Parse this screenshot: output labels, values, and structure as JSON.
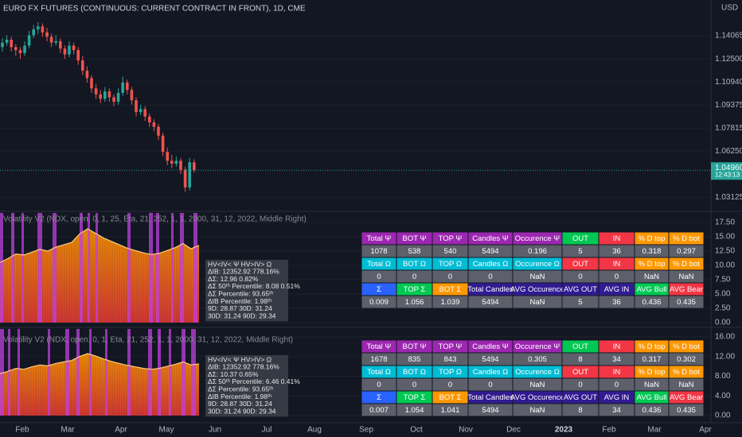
{
  "header": {
    "title": "EURO FX FUTURES (CONTINUOUS: CURRENT CONTRACT IN FRONT), 1D, CME",
    "currency": "USD"
  },
  "price_axis": {
    "ylim": [
      1.0239,
      1.1649
    ],
    "yticks": [
      {
        "value": 1.14065,
        "label": "1.14065"
      },
      {
        "value": 1.125,
        "label": "1.12500"
      },
      {
        "value": 1.1094,
        "label": "1.10940"
      },
      {
        "value": 1.09375,
        "label": "1.09375"
      },
      {
        "value": 1.07815,
        "label": "1.07815"
      },
      {
        "value": 1.0625,
        "label": "1.06250"
      },
      {
        "value": 1.03125,
        "label": "1.03125"
      }
    ],
    "last_price": {
      "value": 1.0496,
      "label": "1.04960"
    },
    "countdown": "12:43:13"
  },
  "candles": [
    [
      1.133,
      1.139,
      1.13,
      1.136
    ],
    [
      1.136,
      1.141,
      1.134,
      1.138
    ],
    [
      1.138,
      1.14,
      1.13,
      1.133
    ],
    [
      1.133,
      1.135,
      1.127,
      1.131
    ],
    [
      1.131,
      1.133,
      1.125,
      1.129
    ],
    [
      1.129,
      1.137,
      1.127,
      1.134
    ],
    [
      1.134,
      1.144,
      1.132,
      1.141
    ],
    [
      1.141,
      1.148,
      1.139,
      1.145
    ],
    [
      1.145,
      1.15,
      1.142,
      1.147
    ],
    [
      1.147,
      1.149,
      1.14,
      1.143
    ],
    [
      1.143,
      1.146,
      1.137,
      1.14
    ],
    [
      1.14,
      1.142,
      1.133,
      1.136
    ],
    [
      1.136,
      1.141,
      1.134,
      1.137
    ],
    [
      1.137,
      1.139,
      1.129,
      1.132
    ],
    [
      1.132,
      1.134,
      1.125,
      1.128
    ],
    [
      1.128,
      1.137,
      1.126,
      1.134
    ],
    [
      1.134,
      1.136,
      1.128,
      1.131
    ],
    [
      1.131,
      1.133,
      1.121,
      1.124
    ],
    [
      1.124,
      1.127,
      1.114,
      1.117
    ],
    [
      1.117,
      1.12,
      1.109,
      1.112
    ],
    [
      1.112,
      1.114,
      1.102,
      1.105
    ],
    [
      1.105,
      1.108,
      1.098,
      1.101
    ],
    [
      1.101,
      1.104,
      1.095,
      1.098
    ],
    [
      1.098,
      1.106,
      1.096,
      1.103
    ],
    [
      1.103,
      1.105,
      1.096,
      1.099
    ],
    [
      1.099,
      1.101,
      1.093,
      1.096
    ],
    [
      1.096,
      1.105,
      1.094,
      1.102
    ],
    [
      1.102,
      1.113,
      1.1,
      1.109
    ],
    [
      1.109,
      1.111,
      1.101,
      1.104
    ],
    [
      1.104,
      1.106,
      1.094,
      1.097
    ],
    [
      1.097,
      1.099,
      1.086,
      1.089
    ],
    [
      1.089,
      1.094,
      1.087,
      1.091
    ],
    [
      1.091,
      1.093,
      1.083,
      1.086
    ],
    [
      1.086,
      1.088,
      1.079,
      1.082
    ],
    [
      1.082,
      1.084,
      1.076,
      1.079
    ],
    [
      1.079,
      1.081,
      1.07,
      1.073
    ],
    [
      1.073,
      1.075,
      1.059,
      1.062
    ],
    [
      1.062,
      1.065,
      1.053,
      1.056
    ],
    [
      1.056,
      1.06,
      1.051,
      1.054
    ],
    [
      1.054,
      1.059,
      1.052,
      1.056
    ],
    [
      1.056,
      1.058,
      1.047,
      1.05
    ],
    [
      1.05,
      1.052,
      1.035,
      1.038
    ],
    [
      1.038,
      1.058,
      1.036,
      1.055
    ],
    [
      1.055,
      1.057,
      1.048,
      1.0496
    ]
  ],
  "panes": [
    {
      "label": "Volatility V2 (NDX, open, 0, 1, 25, Eta, 21, 252, 1, 1, 2000, 31, 12, 2022, Middle Right)",
      "ylim": [
        -0.56,
        19.17
      ],
      "yticks": [
        {
          "value": 0,
          "label": "0.00"
        },
        {
          "value": 2.5,
          "label": "2.50"
        },
        {
          "value": 5,
          "label": "5.00"
        },
        {
          "value": 7.5,
          "label": "7.50"
        },
        {
          "value": 10,
          "label": "10.00"
        },
        {
          "value": 12.5,
          "label": "12.50"
        },
        {
          "value": 15,
          "label": "15.00"
        },
        {
          "value": 17.5,
          "label": "17.50"
        }
      ],
      "values": [
        10.5,
        11.2,
        12.0,
        11.8,
        12.3,
        12.8,
        12.5,
        13.2,
        13.6,
        14.0,
        15.5,
        16.4,
        15.6,
        14.8,
        14.2,
        13.6,
        13.0,
        12.6,
        12.2,
        11.9,
        12.1,
        12.6,
        13.1,
        13.8,
        12.9,
        13.5
      ],
      "info": [
        "HV<IV< Ψ  HV>IV> Ω",
        "ΔIB: 12352.92  778.16%",
        "ΔΣ: 12.96  0.82%",
        "ΔΣ 50ᵗʰ Percentile: 8.08  0.51%",
        "ΔΣ Percentile: 93.65ᵗʰ",
        "ΔIB Percentile: 1.98ᵗʰ",
        "9D: 28.87  30D: 31.24",
        "30D: 31.24  90D: 29.34"
      ],
      "table": [
        [
          "Total Ψ",
          "BOT Ψ",
          "TOP Ψ",
          "Candles Ψ",
          "Occurence Ψ",
          "OUT",
          "IN",
          "% D top",
          "% D bot"
        ],
        [
          "1078",
          "538",
          "540",
          "5494",
          "0.196",
          "5",
          "36",
          "0.318",
          "0.297"
        ],
        [
          "Total Ω",
          "BOT Ω",
          "TOP Ω",
          "Candles Ω",
          "Occurence Ω",
          "OUT",
          "IN",
          "% D top",
          "% D bot"
        ],
        [
          "0",
          "0",
          "0",
          "0",
          "NaN",
          "0",
          "0",
          "NaN",
          "NaN"
        ],
        [
          "Σ",
          "TOP Σ",
          "BOT Σ",
          "Total Candles",
          "AVG Occurence",
          "AVG OUT",
          "AVG IN",
          "AVG Bull",
          "AVG Bear"
        ],
        [
          "0.009",
          "1.056",
          "1.039",
          "5494",
          "NaN",
          "5",
          "36",
          "0.436",
          "0.435"
        ]
      ]
    },
    {
      "label": "Volatility V2 (NDX, open, 0, 1, Eta, 21, 252, 1, 1, 2000, 31, 12, 2022, Middle Right)",
      "ylim": [
        -1.45,
        17.61
      ],
      "yticks": [
        {
          "value": 0,
          "label": "0.00"
        },
        {
          "value": 4,
          "label": "4.00"
        },
        {
          "value": 8,
          "label": "8.00"
        },
        {
          "value": 12,
          "label": "12.00"
        },
        {
          "value": 16,
          "label": "16.00"
        }
      ],
      "values": [
        8.5,
        9.0,
        9.6,
        9.4,
        9.9,
        10.3,
        10.1,
        10.6,
        10.9,
        11.2,
        12.0,
        12.6,
        12.1,
        11.5,
        11.0,
        10.6,
        10.2,
        9.9,
        9.6,
        9.4,
        9.6,
        10.0,
        10.4,
        10.9,
        10.3,
        10.5
      ],
      "info": [
        "HV<IV< Ψ  HV>IV> Ω",
        "ΔIB: 12352.92  778.16%",
        "ΔΣ: 10.37  0.65%",
        "ΔΣ 50ᵗʰ Percentile: 6.46  0.41%",
        "ΔΣ Percentile: 93.65ᵗʰ",
        "ΔIB Percentile: 1.98ᵗʰ",
        "9D: 28.87  30D: 31.24",
        "30D: 31.24  90D: 29.34"
      ],
      "table": [
        [
          "Total Ψ",
          "BOT Ψ",
          "TOP Ψ",
          "Candles Ψ",
          "Occurence Ψ",
          "OUT",
          "IN",
          "% D top",
          "% D bot"
        ],
        [
          "1678",
          "835",
          "843",
          "5494",
          "0.305",
          "8",
          "34",
          "0.317",
          "0.302"
        ],
        [
          "Total Ω",
          "BOT Ω",
          "TOP Ω",
          "Candles Ω",
          "Occurence Ω",
          "OUT",
          "IN",
          "% D top",
          "% D bot"
        ],
        [
          "0",
          "0",
          "0",
          "0",
          "NaN",
          "0",
          "0",
          "NaN",
          "NaN"
        ],
        [
          "Σ",
          "TOP Σ",
          "BOT Σ",
          "Total Candles",
          "AVG Occurence",
          "AVG OUT",
          "AVG IN",
          "AVG Bull",
          "AVG Bear"
        ],
        [
          "0.007",
          "1.054",
          "1.041",
          "5494",
          "NaN",
          "8",
          "34",
          "0.436",
          "0.435"
        ]
      ]
    }
  ],
  "time_axis": [
    "Feb",
    "Mar",
    "Apr",
    "May",
    "Jun",
    "Jul",
    "Aug",
    "Sep",
    "Oct",
    "Nov",
    "Dec",
    "2023",
    "Feb",
    "Mar",
    "Apr"
  ]
}
